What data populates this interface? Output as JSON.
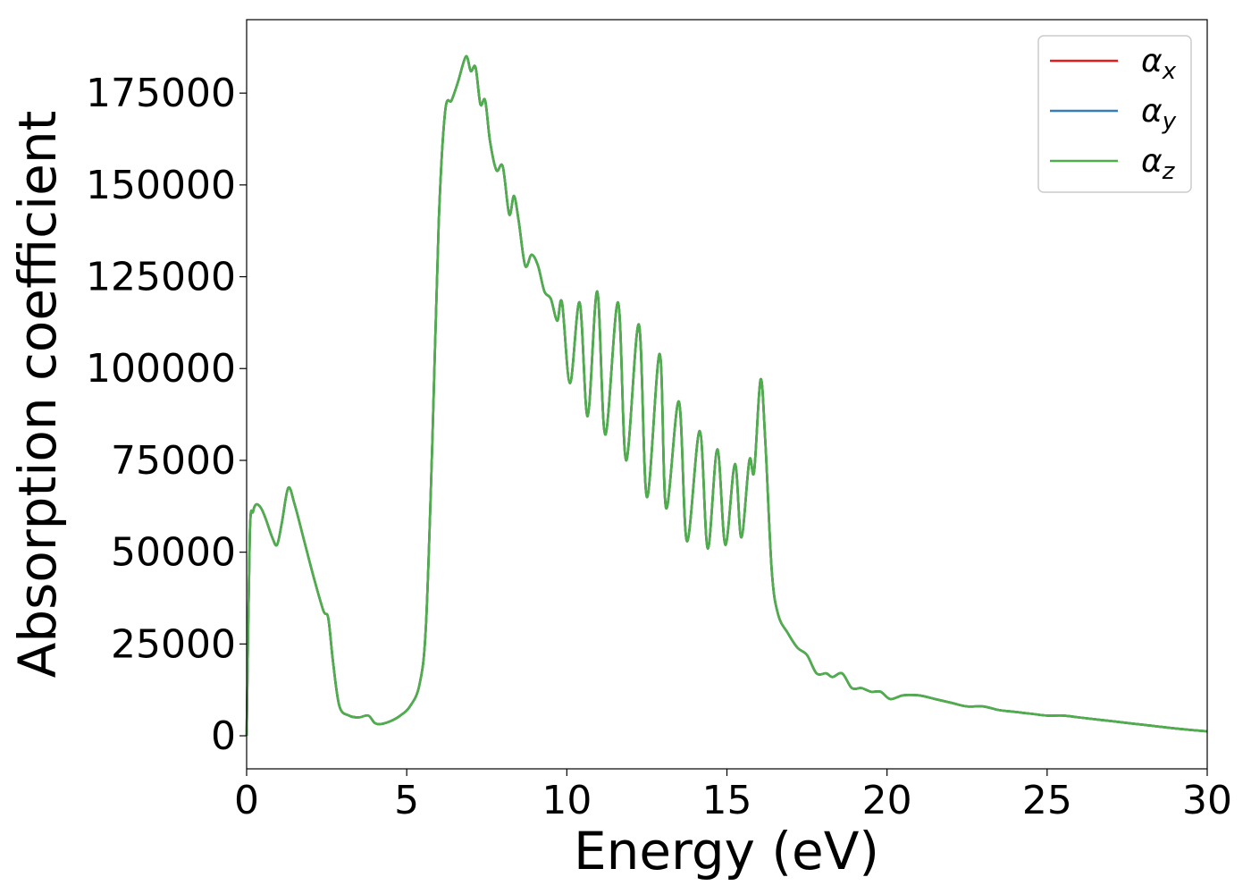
{
  "chart_data": {
    "type": "line",
    "xlabel": "Energy (eV)",
    "ylabel": "Absorption coefficient",
    "xlim": [
      0,
      30
    ],
    "ylim": [
      -9000,
      195000
    ],
    "xticks": [
      0,
      5,
      10,
      15,
      20,
      25,
      30
    ],
    "xtick_labels": [
      "0",
      "5",
      "10",
      "15",
      "20",
      "25",
      "30"
    ],
    "yticks": [
      0,
      25000,
      50000,
      75000,
      100000,
      125000,
      150000,
      175000
    ],
    "ytick_labels": [
      "0",
      "25000",
      "50000",
      "75000",
      "100000",
      "125000",
      "150000",
      "175000"
    ],
    "grid": false,
    "legend_position": "top-right",
    "x": [
      0,
      0.1,
      0.2,
      0.3,
      0.45,
      0.6,
      0.8,
      0.95,
      1.1,
      1.3,
      1.5,
      1.8,
      2.1,
      2.4,
      2.55,
      2.7,
      2.9,
      3.2,
      3.5,
      3.8,
      4.0,
      4.2,
      4.5,
      4.8,
      5.1,
      5.4,
      5.6,
      5.8,
      6.0,
      6.2,
      6.4,
      6.6,
      6.85,
      7.0,
      7.15,
      7.3,
      7.45,
      7.6,
      7.8,
      8.0,
      8.2,
      8.35,
      8.5,
      8.7,
      8.9,
      9.1,
      9.3,
      9.5,
      9.7,
      9.85,
      10.1,
      10.4,
      10.65,
      10.95,
      11.2,
      11.6,
      11.85,
      12.25,
      12.5,
      12.9,
      13.1,
      13.5,
      13.75,
      14.15,
      14.4,
      14.7,
      14.95,
      15.25,
      15.45,
      15.7,
      15.85,
      16.05,
      16.2,
      16.4,
      16.6,
      16.9,
      17.2,
      17.5,
      17.8,
      18.1,
      18.3,
      18.6,
      18.9,
      19.2,
      19.5,
      19.8,
      20.1,
      20.5,
      21.0,
      21.5,
      22.0,
      22.5,
      23.0,
      23.5,
      24.0,
      24.5,
      25.0,
      25.5,
      26.0,
      27.0,
      28.0,
      29.0,
      30.0
    ],
    "series": [
      {
        "name": "αx",
        "color": "#e41a1c",
        "values": [
          0,
          55000,
          61000,
          63000,
          62000,
          59000,
          54000,
          52000,
          58000,
          67500,
          63000,
          53000,
          43000,
          34000,
          32000,
          20000,
          8000,
          5500,
          5000,
          5500,
          3500,
          3200,
          4000,
          5500,
          8000,
          14000,
          30000,
          80000,
          140000,
          170000,
          173000,
          178000,
          185000,
          181000,
          182000,
          172000,
          173000,
          162000,
          154000,
          155000,
          142000,
          147000,
          140000,
          128000,
          131000,
          128000,
          121000,
          119000,
          113000,
          118000,
          96000,
          118000,
          87000,
          121000,
          82000,
          118000,
          75000,
          112000,
          65000,
          104000,
          62000,
          91000,
          53000,
          83000,
          51000,
          78000,
          52000,
          74000,
          54000,
          75000,
          72000,
          97000,
          80000,
          45000,
          33000,
          28000,
          24000,
          22000,
          17000,
          17000,
          16000,
          17000,
          13000,
          13000,
          12000,
          12000,
          10000,
          11000,
          11000,
          10000,
          9000,
          8000,
          8000,
          7000,
          6500,
          6000,
          5500,
          5500,
          5000,
          4000,
          3000,
          2000,
          1200
        ]
      },
      {
        "name": "αy",
        "color": "#377eb8",
        "values": [
          0,
          55000,
          61000,
          63000,
          62000,
          59000,
          54000,
          52000,
          58000,
          67500,
          63000,
          53000,
          43000,
          34000,
          32000,
          20000,
          8000,
          5500,
          5000,
          5500,
          3500,
          3200,
          4000,
          5500,
          8000,
          14000,
          30000,
          80000,
          140000,
          170000,
          173000,
          178000,
          185000,
          181000,
          182000,
          172000,
          173000,
          162000,
          154000,
          155000,
          142000,
          147000,
          140000,
          128000,
          131000,
          128000,
          121000,
          119000,
          113000,
          118000,
          96000,
          118000,
          87000,
          121000,
          82000,
          118000,
          75000,
          112000,
          65000,
          104000,
          62000,
          91000,
          53000,
          83000,
          51000,
          78000,
          52000,
          74000,
          54000,
          75000,
          72000,
          97000,
          80000,
          45000,
          33000,
          28000,
          24000,
          22000,
          17000,
          17000,
          16000,
          17000,
          13000,
          13000,
          12000,
          12000,
          10000,
          11000,
          11000,
          10000,
          9000,
          8000,
          8000,
          7000,
          6500,
          6000,
          5500,
          5500,
          5000,
          4000,
          3000,
          2000,
          1200
        ]
      },
      {
        "name": "αz",
        "color": "#4daf4a",
        "values": [
          0,
          55000,
          61000,
          63000,
          62000,
          59000,
          54000,
          52000,
          58000,
          67500,
          63000,
          53000,
          43000,
          34000,
          32000,
          20000,
          8000,
          5500,
          5000,
          5500,
          3500,
          3200,
          4000,
          5500,
          8000,
          14000,
          30000,
          80000,
          140000,
          170000,
          173000,
          178000,
          185000,
          181000,
          182000,
          172000,
          173000,
          162000,
          154000,
          155000,
          142000,
          147000,
          140000,
          128000,
          131000,
          128000,
          121000,
          119000,
          113000,
          118000,
          96000,
          118000,
          87000,
          121000,
          82000,
          118000,
          75000,
          112000,
          65000,
          104000,
          62000,
          91000,
          53000,
          83000,
          51000,
          78000,
          52000,
          74000,
          54000,
          75000,
          72000,
          97000,
          80000,
          45000,
          33000,
          28000,
          24000,
          22000,
          17000,
          17000,
          16000,
          17000,
          13000,
          13000,
          12000,
          12000,
          10000,
          11000,
          11000,
          10000,
          9000,
          8000,
          8000,
          7000,
          6500,
          6000,
          5500,
          5500,
          5000,
          4000,
          3000,
          2000,
          1200
        ]
      }
    ],
    "legend": [
      {
        "symbol": "α",
        "sub": "x",
        "color": "#e41a1c"
      },
      {
        "symbol": "α",
        "sub": "y",
        "color": "#377eb8"
      },
      {
        "symbol": "α",
        "sub": "z",
        "color": "#4daf4a"
      }
    ]
  }
}
